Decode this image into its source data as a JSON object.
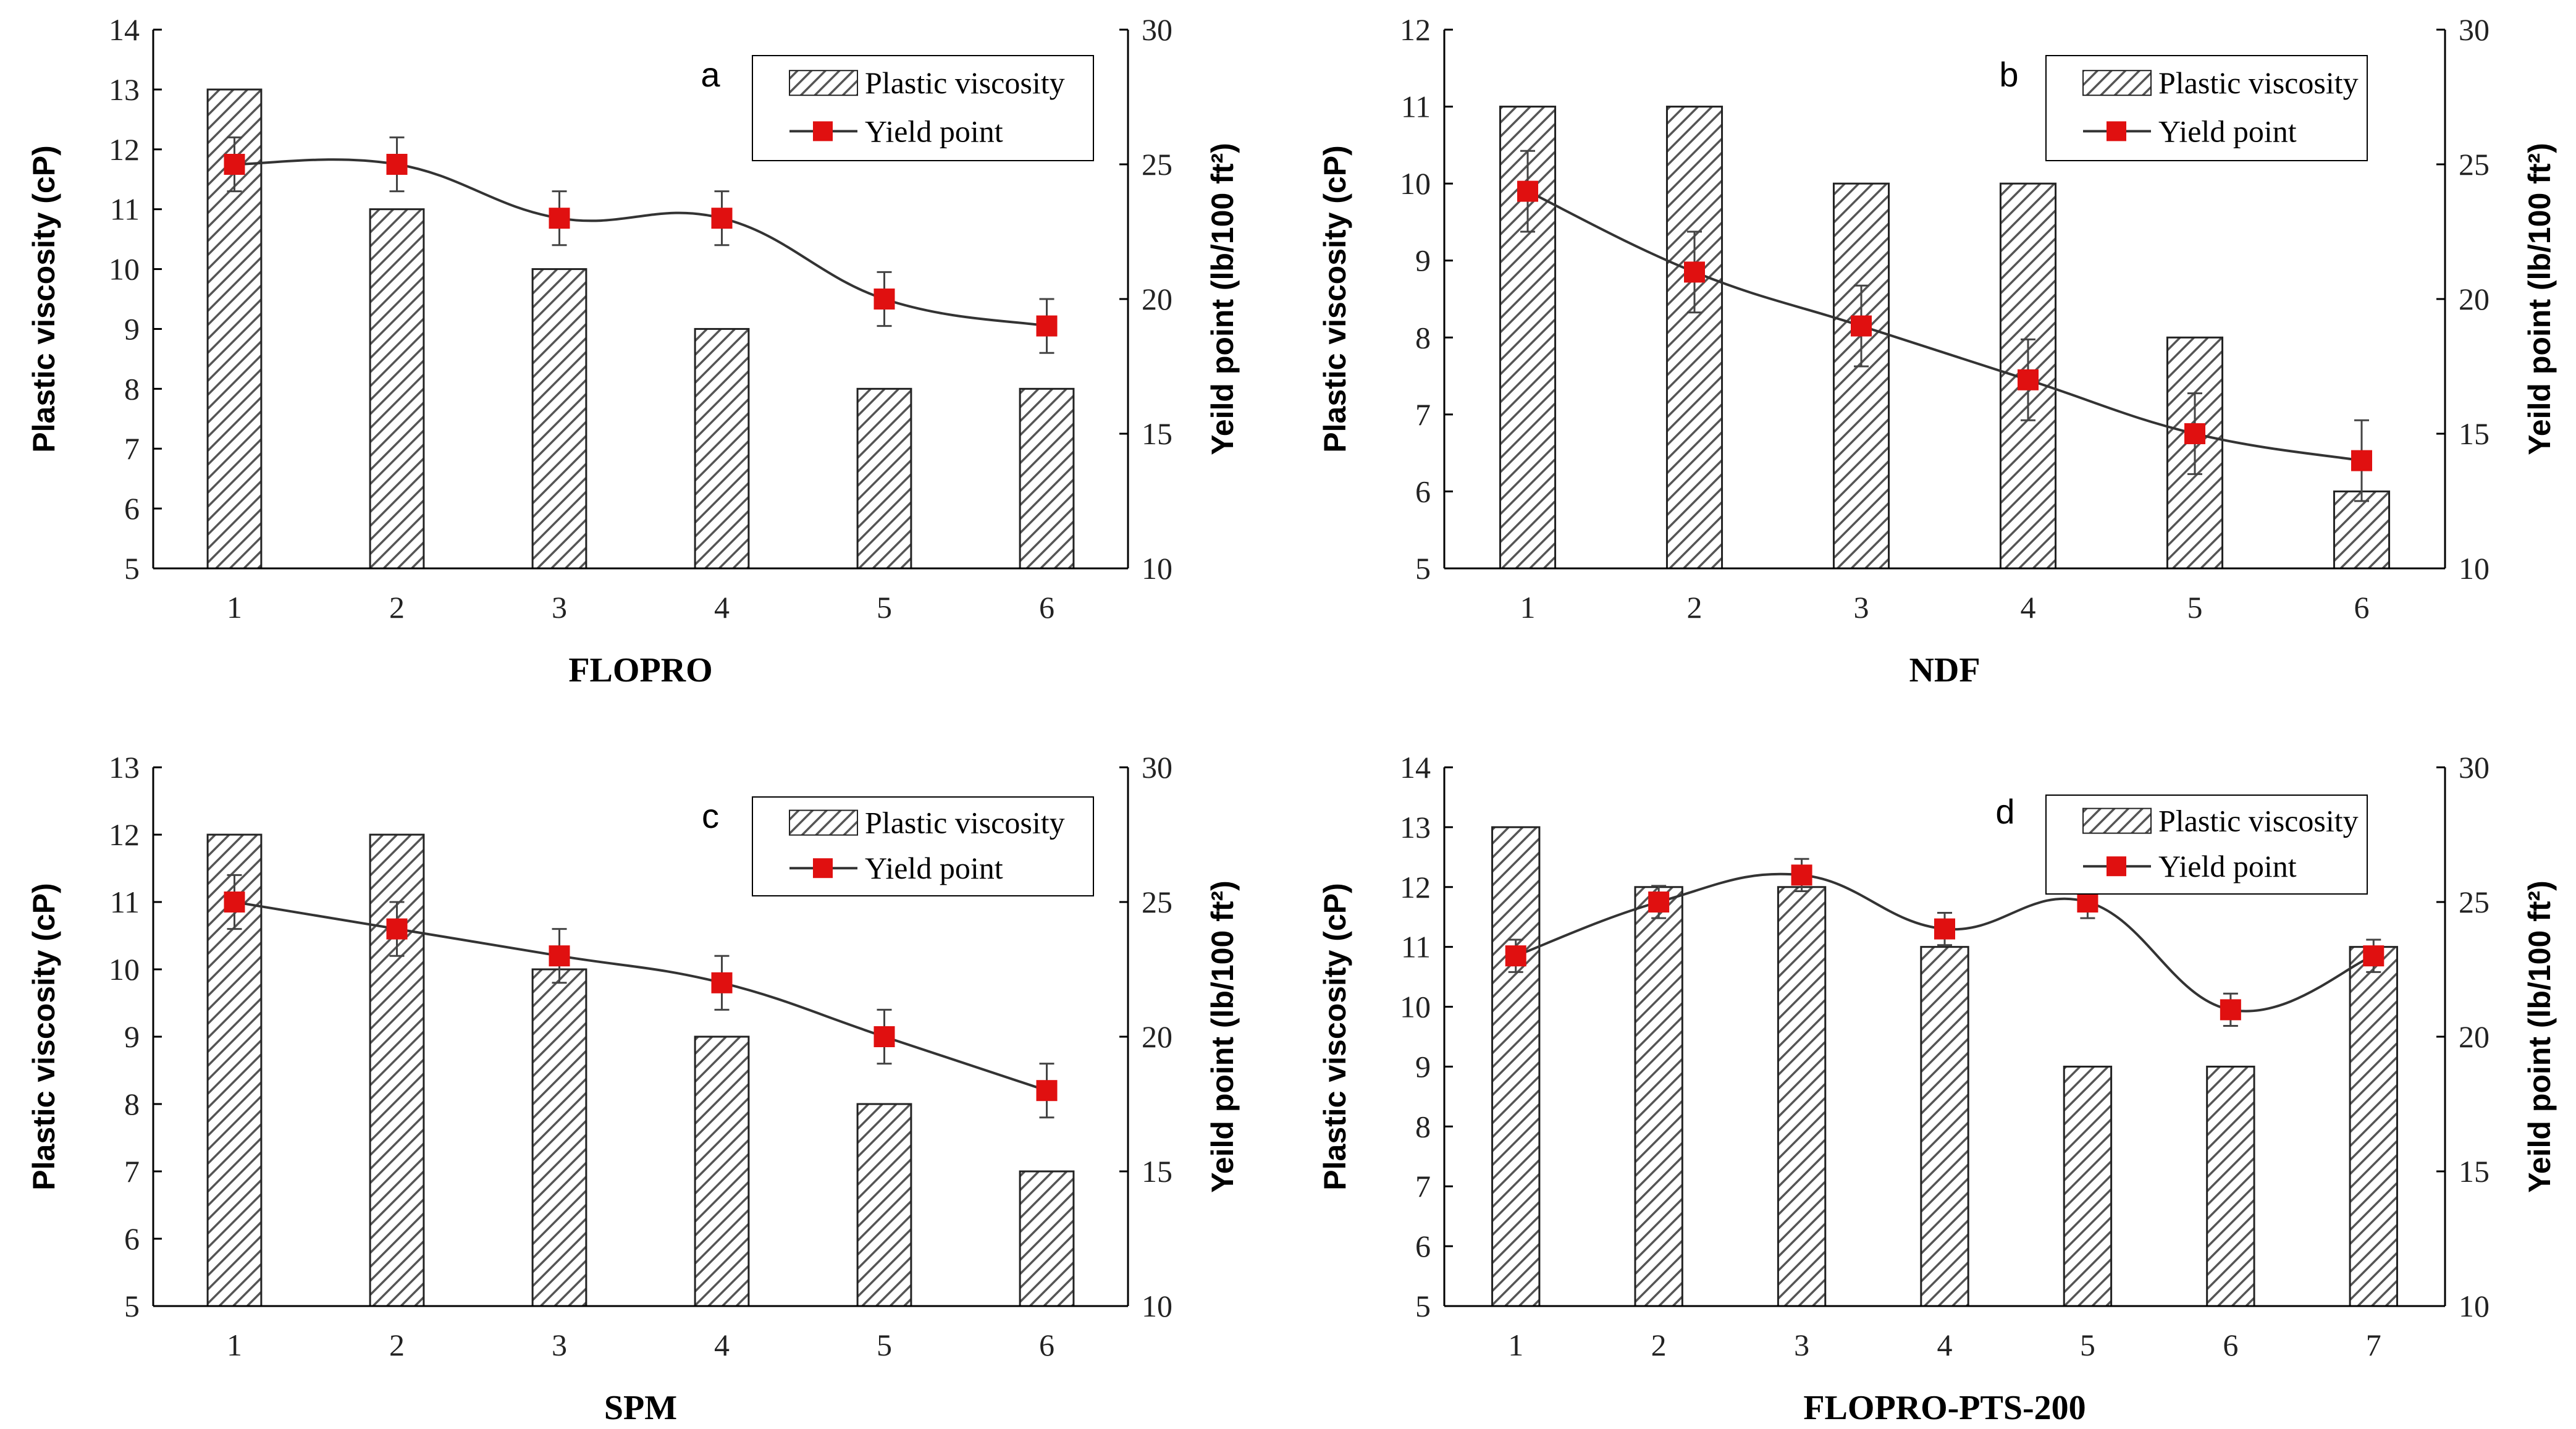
{
  "colors": {
    "bar_stroke": "#222222",
    "hatch": "#555555",
    "line": "#333333",
    "marker": "#e01010",
    "error_bar": "#444444"
  },
  "chart_data": [
    {
      "id": "a",
      "type": "bar+line",
      "label": "a",
      "xlabel": "FLOPRO",
      "ylabel": "Plastic viscosity (cP)",
      "y2label": "Yeild point (lb/100 ft²)",
      "categories": [
        "1",
        "2",
        "3",
        "4",
        "5",
        "6"
      ],
      "ylim": [
        5,
        14
      ],
      "yticks": [
        "5",
        "6",
        "7",
        "8",
        "9",
        "10",
        "11",
        "12",
        "13",
        "14"
      ],
      "y2lim": [
        10,
        30
      ],
      "y2ticks": [
        "10",
        "15",
        "20",
        "25",
        "30"
      ],
      "legend": {
        "bar": "Plastic viscosity",
        "line": "Yield point",
        "placement": "top-right"
      },
      "series": [
        {
          "name": "Plastic viscosity",
          "type": "bar",
          "axis": "left",
          "values": [
            13,
            11,
            10,
            9,
            8,
            8
          ]
        },
        {
          "name": "Yield point",
          "type": "line",
          "axis": "right",
          "values": [
            25,
            25,
            23,
            23,
            20,
            19
          ],
          "errors": [
            1,
            1,
            1,
            1,
            1,
            1
          ]
        }
      ]
    },
    {
      "id": "b",
      "type": "bar+line",
      "label": "b",
      "xlabel": "NDF",
      "ylabel": "Plastic viscosity (cP)",
      "y2label": "Yeild point (lb/100 ft²)",
      "categories": [
        "1",
        "2",
        "3",
        "4",
        "5",
        "6"
      ],
      "ylim": [
        5,
        12
      ],
      "yticks": [
        "5",
        "6",
        "7",
        "8",
        "9",
        "10",
        "11",
        "12"
      ],
      "y2lim": [
        10,
        30
      ],
      "y2ticks": [
        "10",
        "15",
        "20",
        "25",
        "30"
      ],
      "legend": {
        "bar": "Plastic viscosity",
        "line": "Yield point",
        "placement": "top-right"
      },
      "series": [
        {
          "name": "Plastic viscosity",
          "type": "bar",
          "axis": "left",
          "values": [
            11,
            11,
            10,
            10,
            8,
            6
          ]
        },
        {
          "name": "Yield point",
          "type": "line",
          "axis": "right",
          "values": [
            24,
            21,
            19,
            17,
            15,
            14
          ],
          "errors": [
            1.5,
            1.5,
            1.5,
            1.5,
            1.5,
            1.5
          ]
        }
      ]
    },
    {
      "id": "c",
      "type": "bar+line",
      "label": "c",
      "xlabel": "SPM",
      "ylabel": "Plastic viscosity (cP)",
      "y2label": "Yeild point (lb/100 ft²)",
      "categories": [
        "1",
        "2",
        "3",
        "4",
        "5",
        "6"
      ],
      "ylim": [
        5,
        13
      ],
      "yticks": [
        "5",
        "6",
        "7",
        "8",
        "9",
        "10",
        "11",
        "12",
        "13"
      ],
      "y2lim": [
        10,
        30
      ],
      "y2ticks": [
        "10",
        "15",
        "20",
        "25",
        "30"
      ],
      "legend": {
        "bar": "Plastic viscosity",
        "line": "Yield point",
        "placement": "top-right"
      },
      "series": [
        {
          "name": "Plastic viscosity",
          "type": "bar",
          "axis": "left",
          "values": [
            12,
            12,
            10,
            9,
            8,
            7
          ]
        },
        {
          "name": "Yield point",
          "type": "line",
          "axis": "right",
          "values": [
            25,
            24,
            23,
            22,
            20,
            18
          ],
          "errors": [
            1,
            1,
            1,
            1,
            1,
            1
          ]
        }
      ]
    },
    {
      "id": "d",
      "type": "bar+line",
      "label": "d",
      "xlabel": "FLOPRO-PTS-200",
      "ylabel": "Plastic viscosity (cP)",
      "y2label": "Yeild point (lb/100 ft²)",
      "categories": [
        "1",
        "2",
        "3",
        "4",
        "5",
        "6",
        "7"
      ],
      "ylim": [
        5,
        14
      ],
      "yticks": [
        "5",
        "6",
        "7",
        "8",
        "9",
        "10",
        "11",
        "12",
        "13",
        "14"
      ],
      "y2lim": [
        10,
        30
      ],
      "y2ticks": [
        "10",
        "15",
        "20",
        "25",
        "30"
      ],
      "legend": {
        "bar": "Plastic viscosity",
        "line": "Yield point",
        "placement": "top-right"
      },
      "series": [
        {
          "name": "Plastic viscosity",
          "type": "bar",
          "axis": "left",
          "values": [
            13,
            12,
            12,
            11,
            9,
            9,
            11
          ]
        },
        {
          "name": "Yield point",
          "type": "line",
          "axis": "right",
          "values": [
            23,
            25,
            26,
            24,
            25,
            21,
            23
          ],
          "errors": [
            0.6,
            0.6,
            0.6,
            0.6,
            0.6,
            0.6,
            0.6
          ]
        }
      ]
    }
  ]
}
